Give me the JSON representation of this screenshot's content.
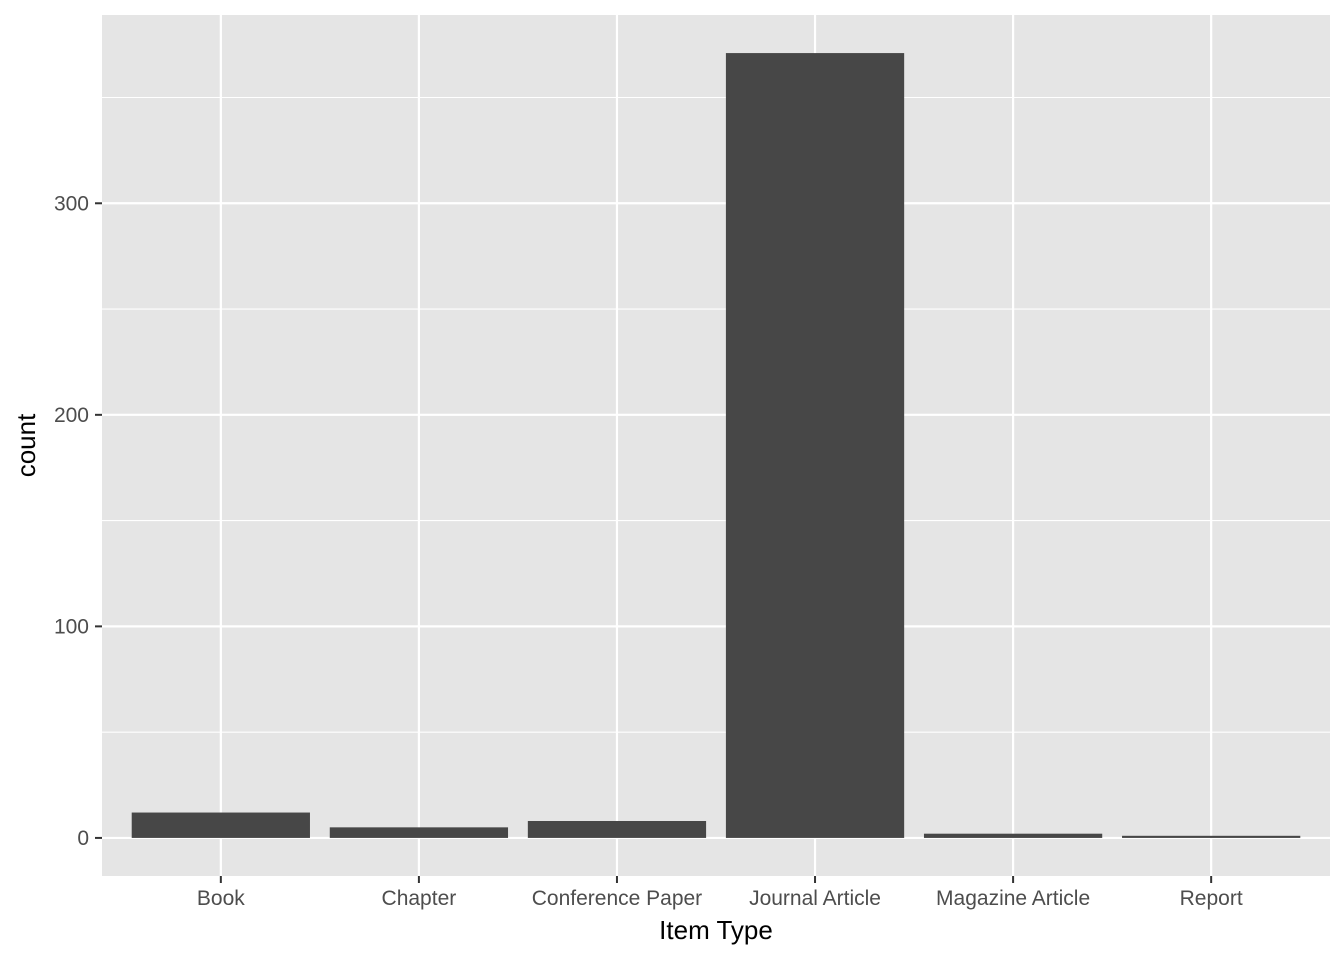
{
  "chart_data": {
    "type": "bar",
    "title": "",
    "xlabel": "Item Type",
    "ylabel": "count",
    "categories": [
      "Book",
      "Chapter",
      "Conference Paper",
      "Journal Article",
      "Magazine Article",
      "Report"
    ],
    "values": [
      12,
      5,
      8,
      371,
      2,
      1
    ],
    "ylim": [
      -18,
      389
    ],
    "yticks": [
      0,
      100,
      200,
      300
    ],
    "ytick_labels": [
      "0",
      "100",
      "200",
      "300"
    ],
    "grid": true,
    "legend": "none",
    "colors": {
      "panel_background": "#e5e5e5",
      "grid_line": "#ffffff",
      "bar_fill": "#474747",
      "tick_mark": "#333333",
      "tick_text": "#4d4d4d",
      "axis_title_text": "#000000"
    }
  }
}
